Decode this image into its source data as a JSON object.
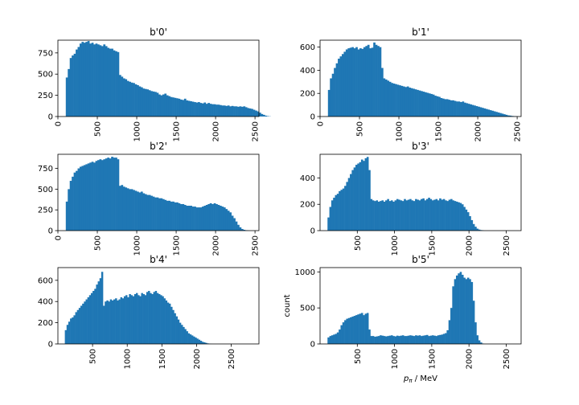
{
  "figure": {
    "background": "#ffffff",
    "bar_color": "#1f77b4"
  },
  "chart_data": [
    {
      "type": "histogram",
      "title": "b'0'",
      "xlabel": "",
      "ylabel": "",
      "xlim": [
        0,
        2550
      ],
      "ylim": [
        0,
        900
      ],
      "xticks": [
        0,
        500,
        1000,
        1500,
        2000,
        2500
      ],
      "yticks": [
        0,
        250,
        500,
        750
      ],
      "bin_start": 100,
      "bin_width": 25,
      "counts": [
        460,
        560,
        690,
        720,
        740,
        790,
        820,
        860,
        880,
        870,
        880,
        890,
        860,
        870,
        850,
        860,
        850,
        840,
        830,
        850,
        830,
        810,
        800,
        800,
        780,
        770,
        760,
        490,
        470,
        450,
        440,
        420,
        410,
        400,
        395,
        380,
        370,
        355,
        345,
        330,
        325,
        320,
        310,
        300,
        295,
        290,
        280,
        260,
        250,
        260,
        270,
        250,
        240,
        230,
        225,
        220,
        215,
        210,
        200,
        195,
        210,
        190,
        185,
        180,
        175,
        170,
        165,
        170,
        160,
        155,
        165,
        150,
        160,
        150,
        145,
        145,
        140,
        140,
        135,
        130,
        130,
        125,
        130,
        120,
        125,
        120,
        120,
        115,
        120,
        115,
        120,
        110,
        100,
        95,
        90,
        80,
        70,
        60,
        45,
        30,
        20,
        10,
        5,
        2
      ]
    },
    {
      "type": "histogram",
      "title": "b'1'",
      "xlabel": "",
      "ylabel": "",
      "xlim": [
        0,
        2550
      ],
      "ylim": [
        0,
        660
      ],
      "xticks": [
        0,
        500,
        1000,
        1500,
        2000,
        2500
      ],
      "yticks": [
        0,
        200,
        400,
        600
      ],
      "bin_start": 100,
      "bin_width": 25,
      "counts": [
        230,
        330,
        370,
        420,
        460,
        500,
        520,
        540,
        560,
        580,
        590,
        595,
        600,
        590,
        600,
        580,
        590,
        585,
        600,
        610,
        620,
        590,
        595,
        640,
        620,
        610,
        600,
        420,
        330,
        320,
        310,
        300,
        290,
        285,
        280,
        275,
        270,
        265,
        260,
        255,
        260,
        250,
        245,
        240,
        235,
        230,
        225,
        220,
        215,
        210,
        205,
        200,
        195,
        190,
        180,
        175,
        170,
        160,
        155,
        150,
        150,
        145,
        140,
        140,
        135,
        130,
        130,
        125,
        130,
        120,
        115,
        110,
        105,
        100,
        95,
        90,
        85,
        80,
        75,
        70,
        65,
        60,
        55,
        50,
        45,
        40,
        35,
        30,
        25,
        20,
        15,
        10,
        8,
        5,
        3,
        2
      ]
    },
    {
      "type": "histogram",
      "title": "b'2'",
      "xlabel": "",
      "ylabel": "",
      "xlim": [
        0,
        2550
      ],
      "ylim": [
        0,
        920
      ],
      "xticks": [
        0,
        500,
        1000,
        1500,
        2000,
        2500
      ],
      "yticks": [
        0,
        250,
        500,
        750
      ],
      "bin_start": 100,
      "bin_width": 25,
      "counts": [
        350,
        500,
        600,
        650,
        700,
        720,
        750,
        770,
        780,
        790,
        800,
        810,
        820,
        830,
        820,
        840,
        850,
        860,
        850,
        860,
        870,
        880,
        870,
        890,
        880,
        880,
        860,
        540,
        550,
        530,
        520,
        510,
        500,
        500,
        490,
        480,
        470,
        460,
        470,
        450,
        440,
        430,
        430,
        420,
        410,
        400,
        400,
        390,
        390,
        380,
        370,
        360,
        360,
        350,
        350,
        340,
        340,
        330,
        320,
        320,
        310,
        300,
        300,
        300,
        290,
        290,
        280,
        280,
        280,
        290,
        300,
        310,
        320,
        330,
        320,
        330,
        320,
        310,
        300,
        290,
        280,
        260,
        240,
        220,
        180,
        150,
        110,
        70,
        40,
        20,
        10,
        5,
        2
      ]
    },
    {
      "type": "histogram",
      "title": "b'3'",
      "xlabel": "",
      "ylabel": "",
      "xlim": [
        0,
        2700
      ],
      "ylim": [
        0,
        580
      ],
      "xticks": [
        500,
        1000,
        1500,
        2000,
        2500
      ],
      "yticks": [
        0,
        200,
        400
      ],
      "bin_start": 100,
      "bin_width": 25,
      "counts": [
        100,
        180,
        230,
        250,
        270,
        280,
        300,
        310,
        320,
        340,
        370,
        400,
        430,
        460,
        480,
        500,
        510,
        520,
        540,
        530,
        550,
        560,
        460,
        240,
        230,
        225,
        230,
        220,
        225,
        230,
        220,
        230,
        240,
        225,
        230,
        220,
        230,
        240,
        235,
        230,
        225,
        240,
        230,
        235,
        240,
        230,
        225,
        240,
        235,
        230,
        240,
        245,
        230,
        240,
        250,
        240,
        230,
        235,
        240,
        230,
        245,
        235,
        240,
        230,
        225,
        235,
        240,
        230,
        225,
        220,
        215,
        210,
        200,
        180,
        160,
        140,
        110,
        80,
        50,
        30,
        15,
        8,
        4,
        2
      ]
    },
    {
      "type": "histogram",
      "title": "b'4'",
      "xlabel": "",
      "ylabel": "",
      "xlim": [
        0,
        2900
      ],
      "ylim": [
        0,
        720
      ],
      "xticks": [
        500,
        1000,
        1500,
        2000,
        2500
      ],
      "yticks": [
        0,
        200,
        400,
        600
      ],
      "bin_start": 100,
      "bin_width": 25,
      "counts": [
        130,
        180,
        210,
        240,
        250,
        270,
        300,
        320,
        340,
        360,
        380,
        400,
        420,
        440,
        460,
        480,
        500,
        520,
        560,
        590,
        620,
        680,
        360,
        400,
        410,
        400,
        420,
        410,
        420,
        430,
        410,
        420,
        440,
        430,
        450,
        460,
        440,
        470,
        460,
        450,
        470,
        480,
        460,
        450,
        480,
        470,
        460,
        490,
        500,
        480,
        470,
        490,
        500,
        480,
        470,
        460,
        450,
        430,
        410,
        390,
        380,
        350,
        320,
        290,
        260,
        230,
        200,
        180,
        160,
        140,
        120,
        100,
        90,
        80,
        70,
        60,
        50,
        40,
        30,
        20,
        15,
        10,
        5,
        2,
        1,
        0,
        0,
        0,
        0,
        0,
        0,
        0,
        0,
        0,
        0,
        0,
        0,
        0,
        0,
        0,
        0,
        0,
        0,
        0,
        0,
        0,
        0,
        0,
        0,
        0
      ]
    },
    {
      "type": "histogram",
      "title": "b'5'",
      "xlabel": "p_π / MeV",
      "ylabel": "count",
      "xlim": [
        0,
        2700
      ],
      "ylim": [
        0,
        1060
      ],
      "xticks": [
        500,
        1000,
        1500,
        2000,
        2500
      ],
      "yticks": [
        0,
        500,
        1000
      ],
      "bin_start": 100,
      "bin_width": 25,
      "counts": [
        90,
        110,
        120,
        130,
        140,
        160,
        200,
        260,
        300,
        330,
        350,
        360,
        370,
        380,
        390,
        400,
        410,
        420,
        430,
        400,
        420,
        430,
        200,
        110,
        110,
        100,
        105,
        110,
        120,
        115,
        110,
        105,
        110,
        115,
        120,
        110,
        105,
        115,
        110,
        115,
        120,
        110,
        110,
        115,
        120,
        115,
        110,
        120,
        115,
        120,
        110,
        115,
        120,
        125,
        110,
        115,
        120,
        115,
        110,
        120,
        125,
        130,
        140,
        150,
        190,
        330,
        500,
        800,
        900,
        950,
        980,
        1000,
        960,
        920,
        900,
        920,
        900,
        860,
        600,
        300,
        120,
        50,
        20,
        5
      ]
    }
  ]
}
